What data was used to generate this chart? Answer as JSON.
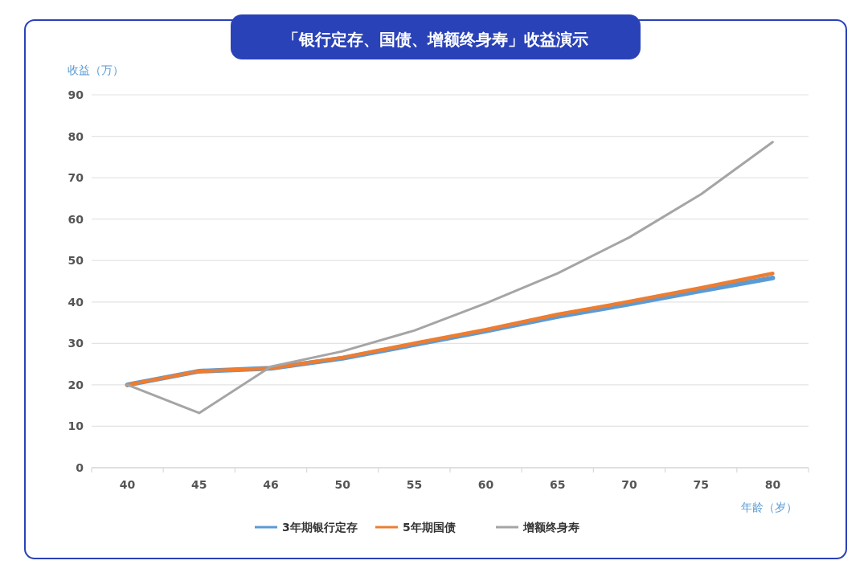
{
  "chart_data": {
    "type": "line",
    "title": "「银行定存、国债、增额终身寿」收益演示",
    "xlabel": "年龄（岁）",
    "ylabel": "收益（万）",
    "categories": [
      "40",
      "45",
      "46",
      "50",
      "55",
      "60",
      "65",
      "70",
      "75",
      "80"
    ],
    "series": [
      {
        "name": "3年期银行定存",
        "color": "#5b9bd5",
        "values": [
          20,
          23.3,
          24,
          26.4,
          29.7,
          33,
          36.5,
          39.5,
          42.7,
          45.8
        ]
      },
      {
        "name": "5年期国债",
        "color": "#ed7d31",
        "values": [
          20,
          23.3,
          24,
          26.6,
          30,
          33.3,
          37,
          40.1,
          43.4,
          46.9
        ]
      },
      {
        "name": "增额终身寿",
        "color": "#a5a5a5",
        "values": [
          20,
          13.2,
          24.4,
          28.1,
          33.1,
          39.7,
          46.9,
          55.6,
          66,
          78.6
        ]
      }
    ],
    "ylim": [
      0,
      90
    ],
    "yticks": [
      0,
      10,
      20,
      30,
      40,
      50,
      60,
      70,
      80,
      90
    ],
    "grid": "y",
    "legend": "bottom",
    "marker": "none",
    "line_style": "solid"
  }
}
